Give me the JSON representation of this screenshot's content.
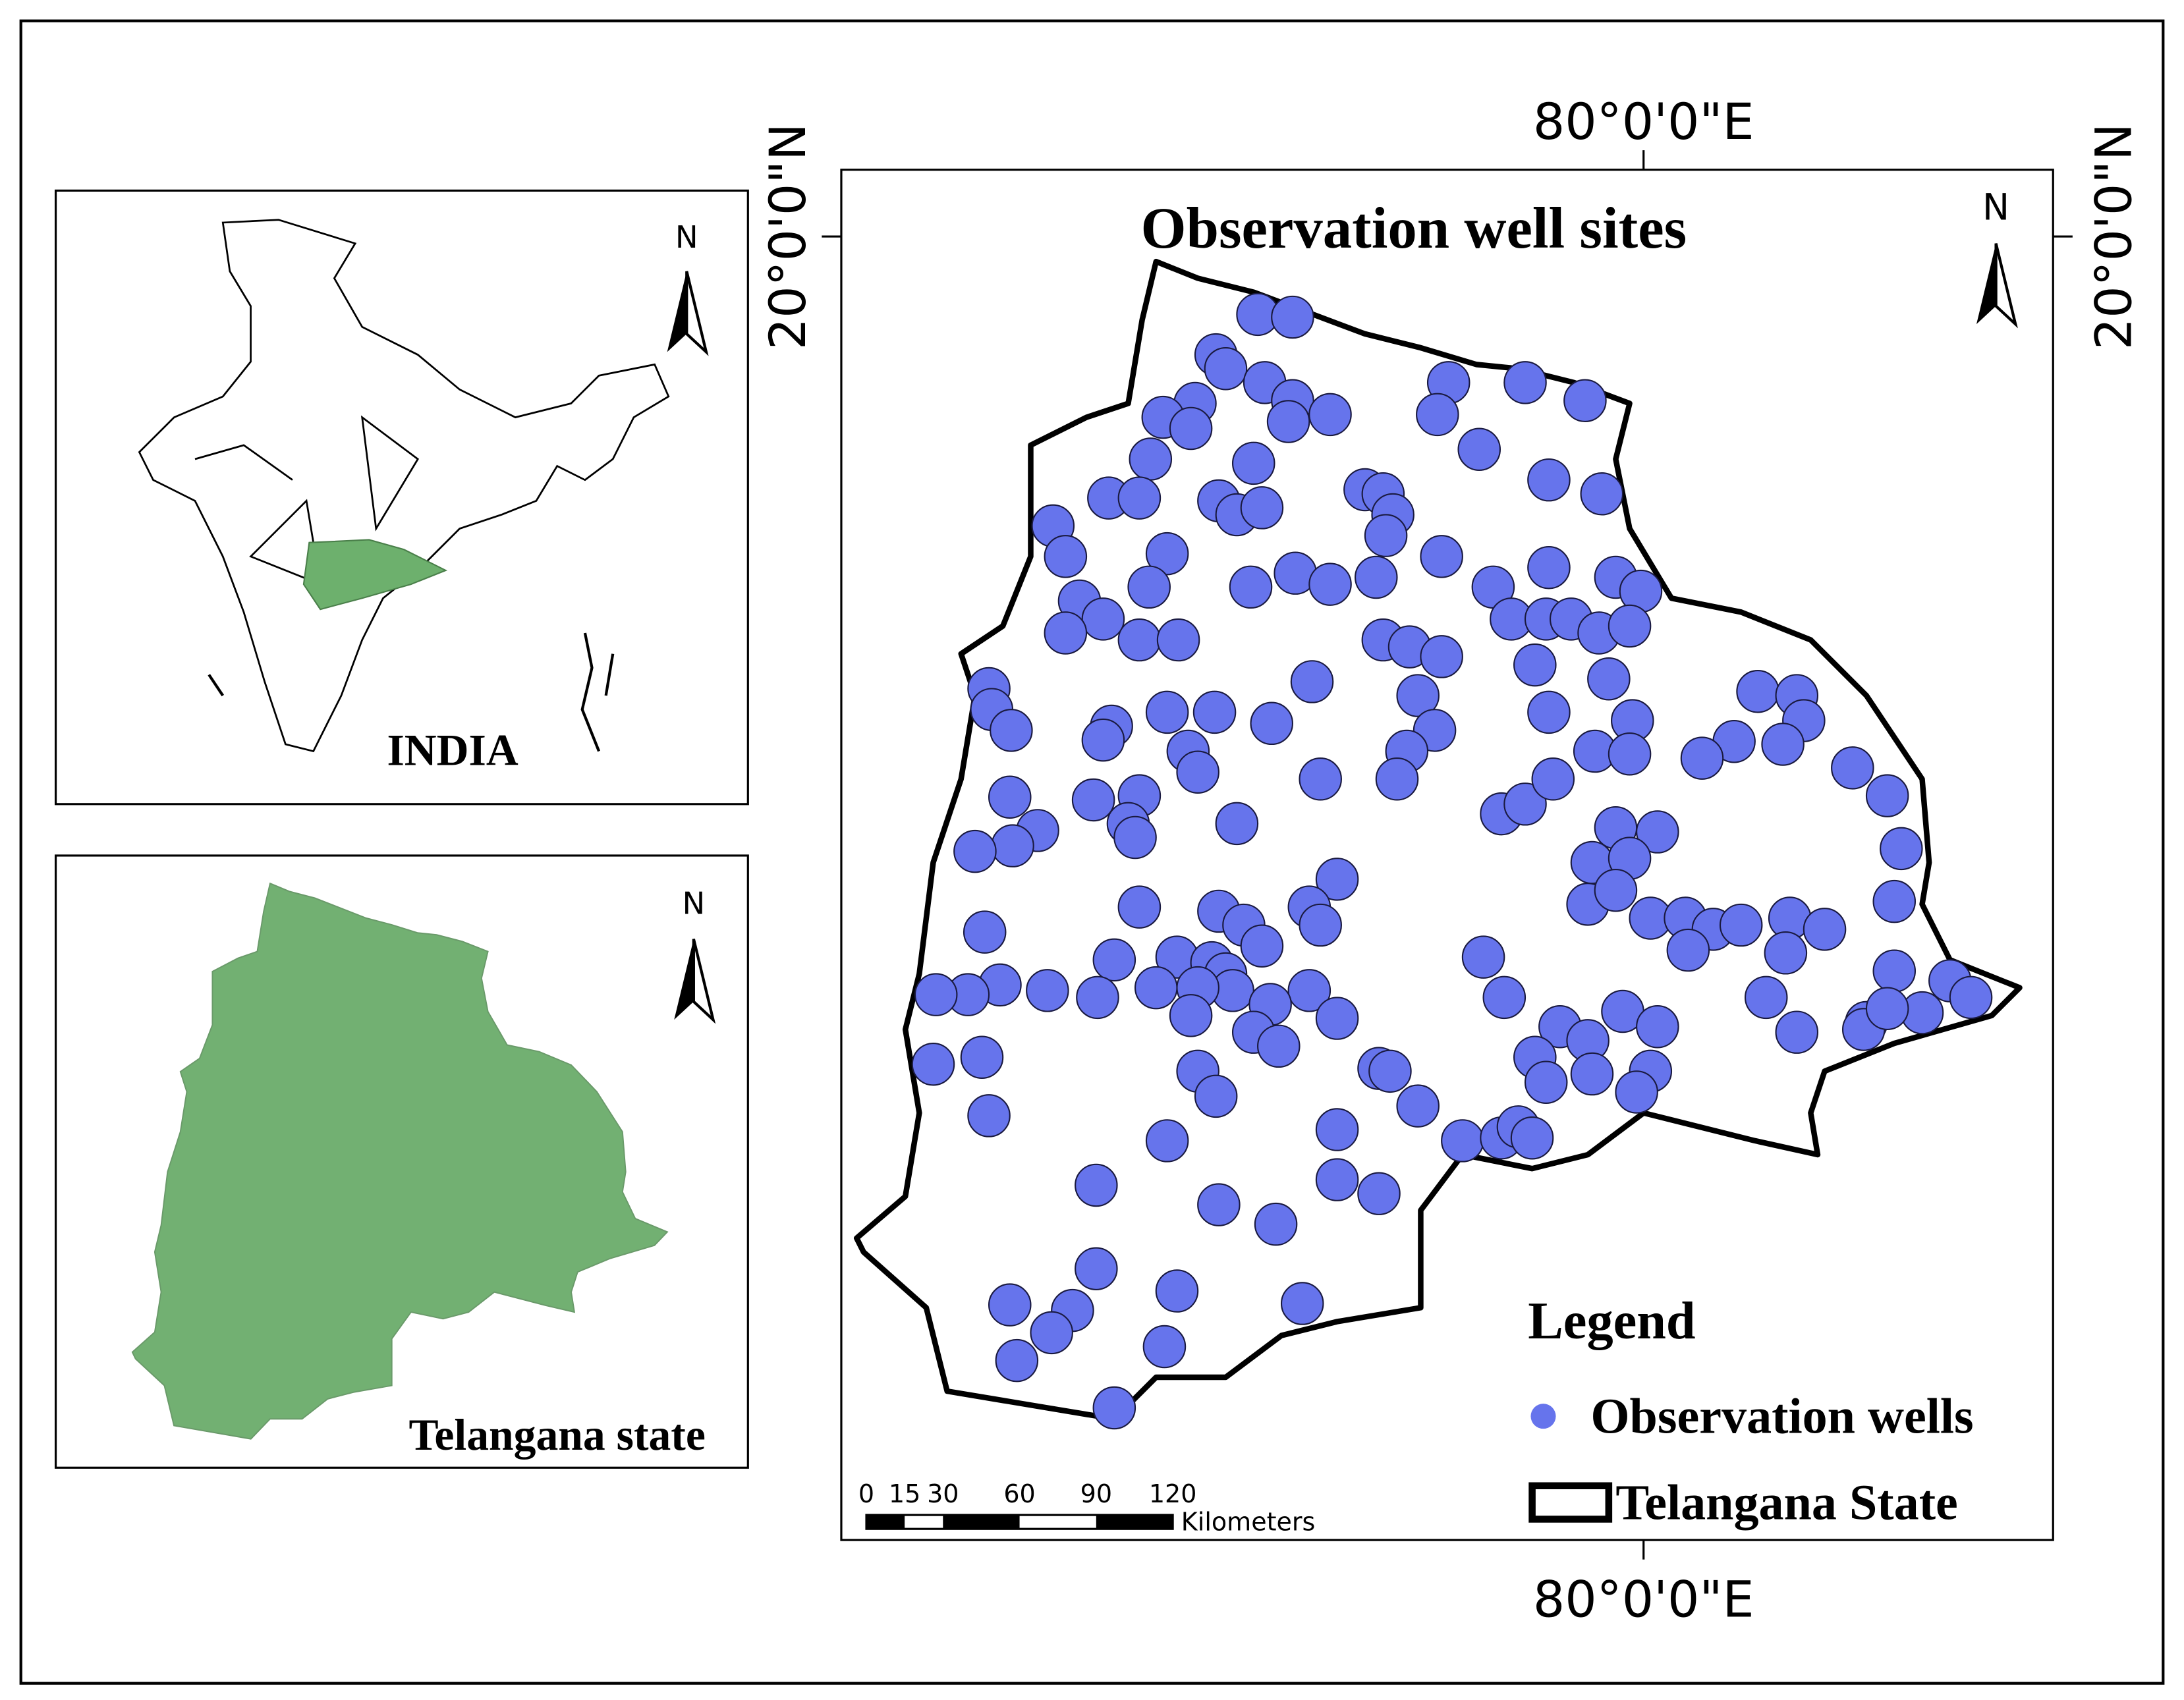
{
  "inset_india": {
    "north": "N",
    "label": "INDIA"
  },
  "inset_state": {
    "north": "N",
    "label": "Telangana state"
  },
  "main_map": {
    "title": "Observation well sites",
    "north": "N",
    "lon_label_top": "80°0'0\"E",
    "lon_label_bottom": "80°0'0\"E",
    "lat_label_left": "20°0'0\"N",
    "lat_label_right": "20°0'0\"N",
    "legend": {
      "title": "Legend",
      "items": [
        "Observation wells",
        "Telangana State"
      ]
    },
    "scale_bar": {
      "ticks": [
        0,
        15,
        30,
        60,
        90,
        120
      ],
      "unit": "Kilometers"
    }
  }
}
